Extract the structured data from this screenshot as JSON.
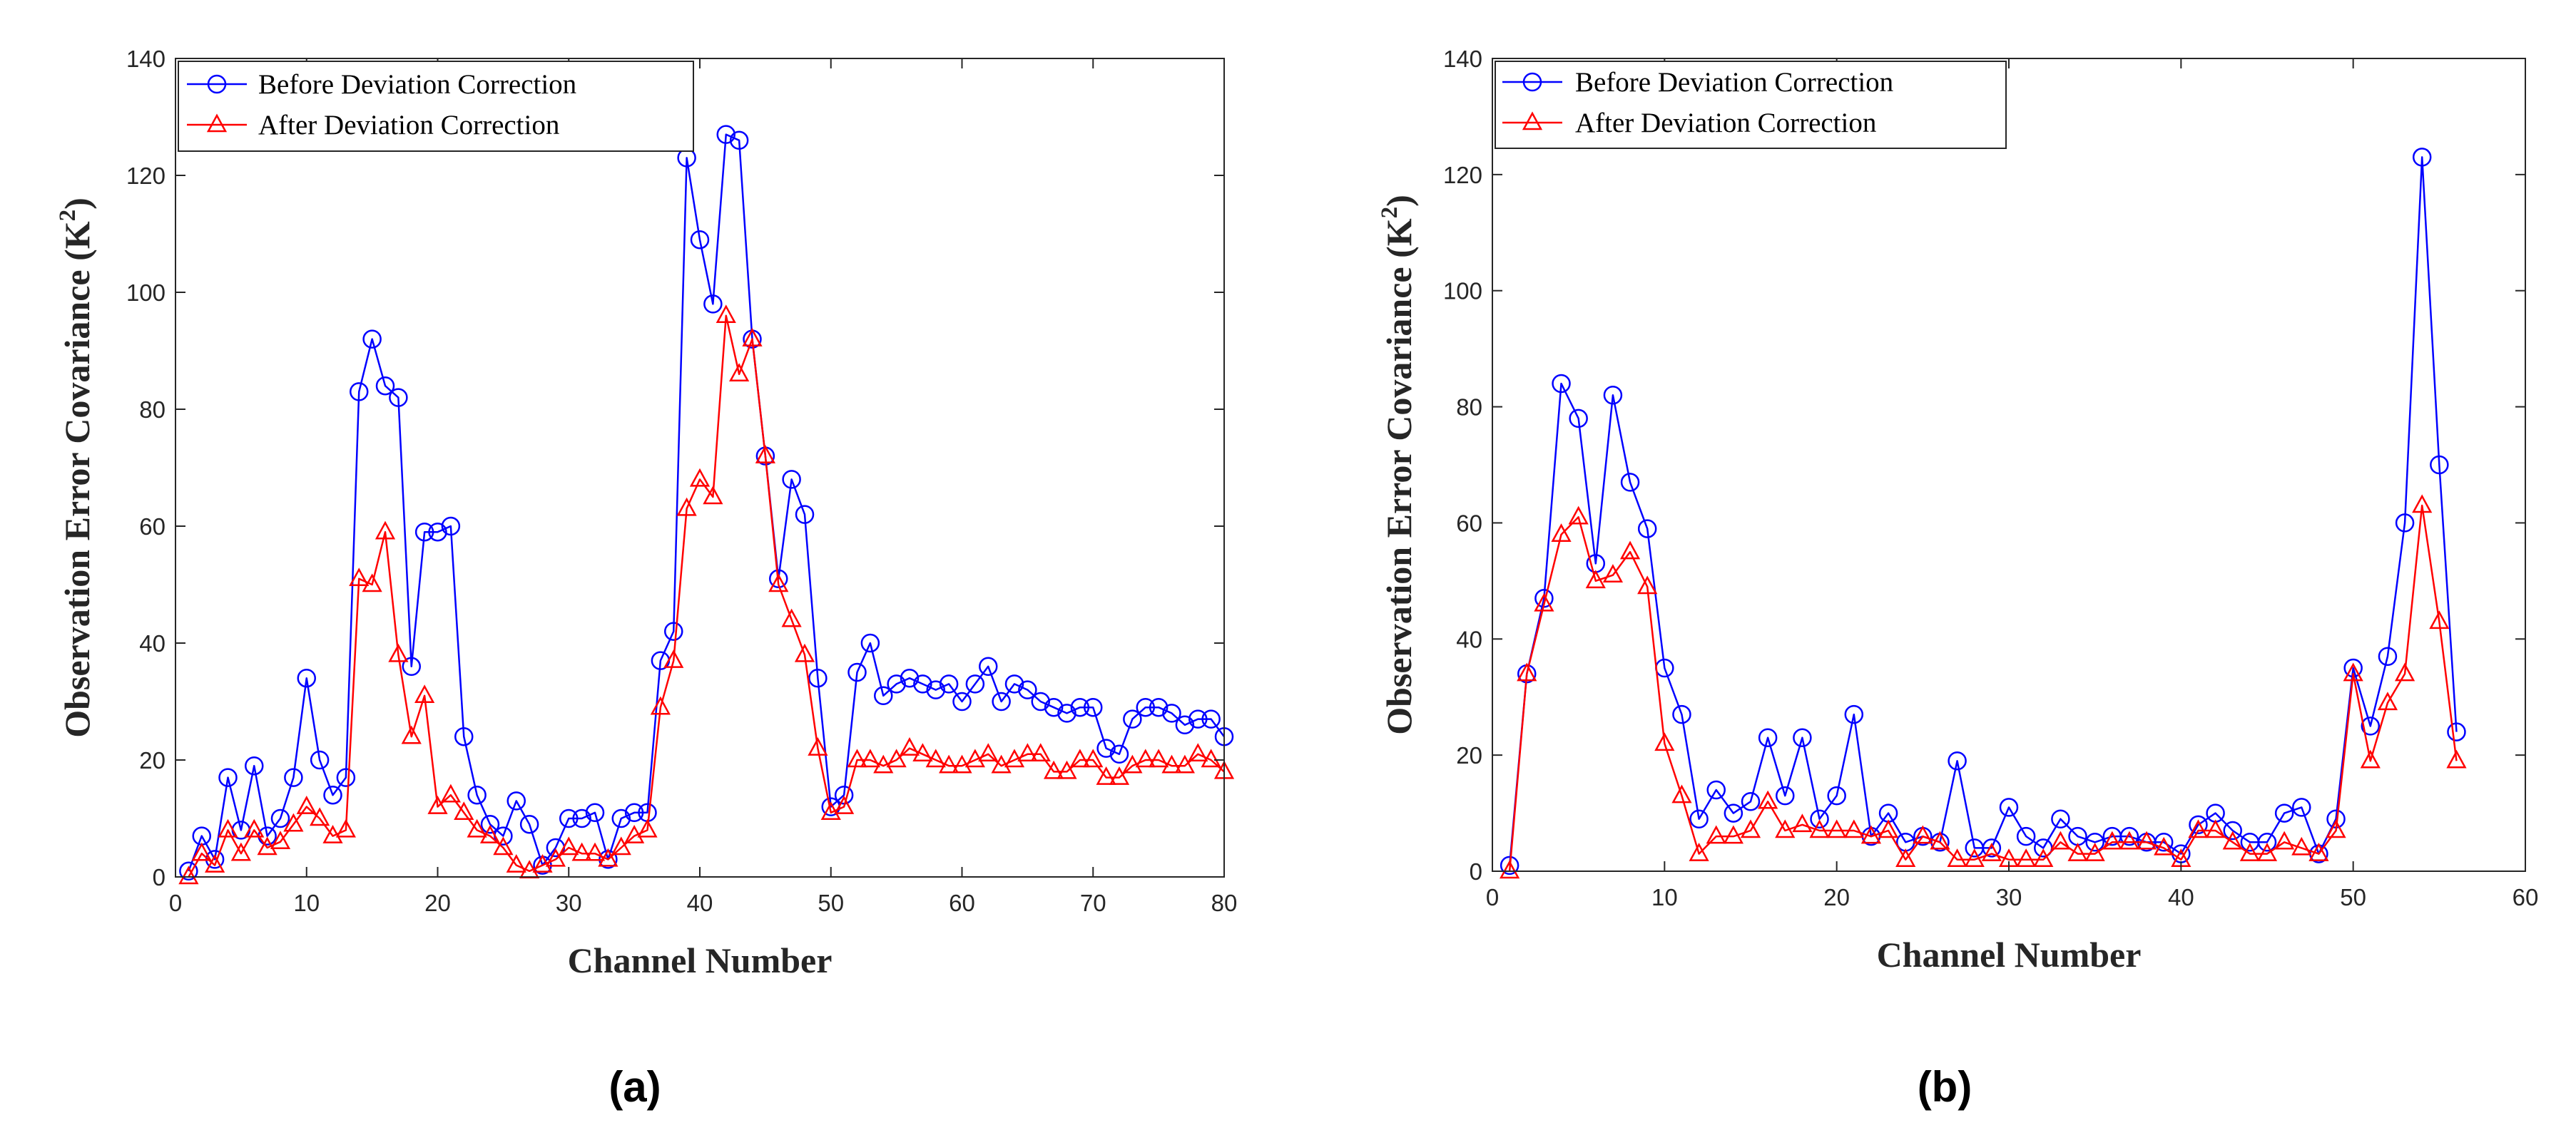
{
  "colors": {
    "before": "#0000ff",
    "after": "#ff0000",
    "axis": "#262626"
  },
  "chart_data": [
    {
      "type": "line",
      "panel_label": "(a)",
      "xlabel": "Channel Number",
      "ylabel": "Observation Error Covariance (K",
      "ylabel_sup": "2",
      "ylabel_close": ")",
      "xlim": [
        0,
        80
      ],
      "ylim": [
        0,
        140
      ],
      "xticks": [
        0,
        10,
        20,
        30,
        40,
        50,
        60,
        70,
        80
      ],
      "yticks": [
        0,
        20,
        40,
        60,
        80,
        100,
        120,
        140
      ],
      "legend_position": "top-left",
      "series": [
        {
          "name": "Before Deviation Correction",
          "color": "#0000ff",
          "marker": "circle",
          "x": [
            1,
            2,
            3,
            4,
            5,
            6,
            7,
            8,
            9,
            10,
            11,
            12,
            13,
            14,
            15,
            16,
            17,
            18,
            19,
            20,
            21,
            22,
            23,
            24,
            25,
            26,
            27,
            28,
            29,
            30,
            31,
            32,
            33,
            34,
            35,
            36,
            37,
            38,
            39,
            40,
            41,
            42,
            43,
            44,
            45,
            46,
            47,
            48,
            49,
            50,
            51,
            52,
            53,
            54,
            55,
            56,
            57,
            58,
            59,
            60,
            61,
            62,
            63,
            64,
            65,
            66,
            67,
            68,
            69,
            70,
            71,
            72,
            73,
            74,
            75,
            76,
            77,
            78,
            79,
            80
          ],
          "values": [
            1,
            7,
            3,
            17,
            8,
            19,
            7,
            10,
            17,
            34,
            20,
            14,
            17,
            83,
            92,
            84,
            82,
            36,
            59,
            59,
            60,
            24,
            14,
            9,
            7,
            13,
            9,
            2,
            5,
            10,
            10,
            11,
            3,
            10,
            11,
            11,
            37,
            42,
            123,
            109,
            98,
            127,
            126,
            92,
            72,
            51,
            68,
            62,
            34,
            12,
            14,
            35,
            40,
            31,
            33,
            34,
            33,
            32,
            33,
            30,
            33,
            36,
            30,
            33,
            32,
            30,
            29,
            28,
            29,
            29,
            22,
            21,
            27,
            29,
            29,
            28,
            26,
            27,
            27,
            24
          ]
        },
        {
          "name": "After Deviation Correction",
          "color": "#ff0000",
          "marker": "triangle",
          "x": [
            1,
            2,
            3,
            4,
            5,
            6,
            7,
            8,
            9,
            10,
            11,
            12,
            13,
            14,
            15,
            16,
            17,
            18,
            19,
            20,
            21,
            22,
            23,
            24,
            25,
            26,
            27,
            28,
            29,
            30,
            31,
            32,
            33,
            34,
            35,
            36,
            37,
            38,
            39,
            40,
            41,
            42,
            43,
            44,
            45,
            46,
            47,
            48,
            49,
            50,
            51,
            52,
            53,
            54,
            55,
            56,
            57,
            58,
            59,
            60,
            61,
            62,
            63,
            64,
            65,
            66,
            67,
            68,
            69,
            70,
            71,
            72,
            73,
            74,
            75,
            76,
            77,
            78,
            79,
            80
          ],
          "values": [
            0,
            4,
            2,
            8,
            4,
            8,
            5,
            6,
            9,
            12,
            10,
            7,
            8,
            51,
            50,
            59,
            38,
            24,
            31,
            12,
            14,
            11,
            8,
            7,
            5,
            2,
            1,
            2,
            3,
            5,
            4,
            4,
            3,
            5,
            7,
            8,
            29,
            37,
            63,
            68,
            65,
            96,
            86,
            92,
            72,
            50,
            44,
            38,
            22,
            11,
            12,
            20,
            20,
            19,
            20,
            22,
            21,
            20,
            19,
            19,
            20,
            21,
            19,
            20,
            21,
            21,
            18,
            18,
            20,
            20,
            17,
            17,
            19,
            20,
            20,
            19,
            19,
            21,
            20,
            18
          ]
        }
      ]
    },
    {
      "type": "line",
      "panel_label": "(b)",
      "xlabel": "Channel Number",
      "ylabel": "Observation Error Covariance (K",
      "ylabel_sup": "2",
      "ylabel_close": ")",
      "xlim": [
        0,
        60
      ],
      "ylim": [
        0,
        140
      ],
      "xticks": [
        0,
        10,
        20,
        30,
        40,
        50,
        60
      ],
      "yticks": [
        0,
        20,
        40,
        60,
        80,
        100,
        120,
        140
      ],
      "legend_position": "top-left",
      "series": [
        {
          "name": "Before Deviation Correction",
          "color": "#0000ff",
          "marker": "circle",
          "x": [
            1,
            2,
            3,
            4,
            5,
            6,
            7,
            8,
            9,
            10,
            11,
            12,
            13,
            14,
            15,
            16,
            17,
            18,
            19,
            20,
            21,
            22,
            23,
            24,
            25,
            26,
            27,
            28,
            29,
            30,
            31,
            32,
            33,
            34,
            35,
            36,
            37,
            38,
            39,
            40,
            41,
            42,
            43,
            44,
            45,
            46,
            47,
            48,
            49,
            50,
            51,
            52,
            53,
            54,
            55,
            56
          ],
          "values": [
            1,
            34,
            47,
            84,
            78,
            53,
            82,
            67,
            59,
            35,
            27,
            9,
            14,
            10,
            12,
            23,
            13,
            23,
            9,
            13,
            27,
            6,
            10,
            5,
            6,
            5,
            19,
            4,
            4,
            11,
            6,
            4,
            9,
            6,
            5,
            6,
            6,
            5,
            5,
            3,
            8,
            10,
            7,
            5,
            5,
            10,
            11,
            3,
            9,
            35,
            25,
            37,
            60,
            123,
            70,
            24
          ]
        },
        {
          "name": "After Deviation Correction",
          "color": "#ff0000",
          "marker": "triangle",
          "x": [
            1,
            2,
            3,
            4,
            5,
            6,
            7,
            8,
            9,
            10,
            11,
            12,
            13,
            14,
            15,
            16,
            17,
            18,
            19,
            20,
            21,
            22,
            23,
            24,
            25,
            26,
            27,
            28,
            29,
            30,
            31,
            32,
            33,
            34,
            35,
            36,
            37,
            38,
            39,
            40,
            41,
            42,
            43,
            44,
            45,
            46,
            47,
            48,
            49,
            50,
            51,
            52,
            53,
            54,
            55,
            56
          ],
          "values": [
            0,
            34,
            46,
            58,
            61,
            50,
            51,
            55,
            49,
            22,
            13,
            3,
            6,
            6,
            7,
            12,
            7,
            8,
            7,
            7,
            7,
            6,
            7,
            2,
            6,
            5,
            2,
            2,
            3,
            2,
            2,
            2,
            5,
            3,
            3,
            5,
            5,
            5,
            4,
            2,
            7,
            7,
            5,
            3,
            3,
            5,
            4,
            3,
            7,
            34,
            19,
            29,
            34,
            63,
            43,
            19
          ]
        }
      ]
    }
  ]
}
